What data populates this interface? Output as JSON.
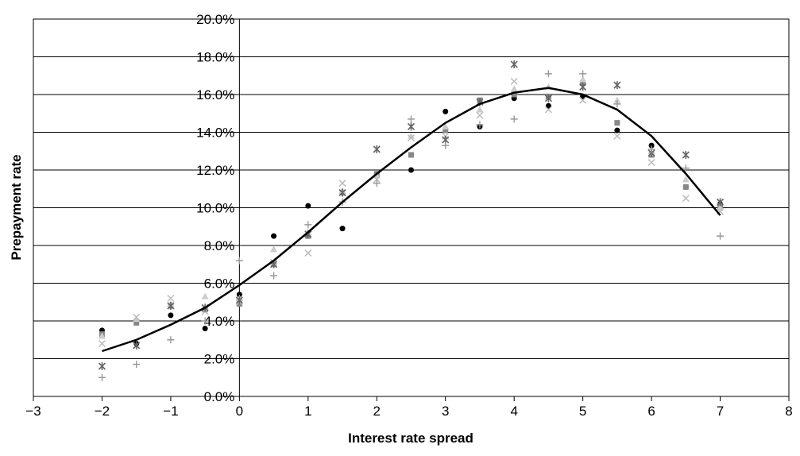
{
  "chart_data": {
    "type": "scatter",
    "x_label": "Interest rate spread",
    "y_label": "Prepayment rate",
    "x": [
      -2,
      -1.5,
      -1,
      -0.5,
      0,
      0.5,
      1,
      1.5,
      2,
      2.5,
      3,
      3.5,
      4,
      4.5,
      5,
      5.5,
      6,
      6.5,
      7
    ],
    "series": [
      {
        "marker": "circle",
        "color": "#000000",
        "values": [
          3.5,
          2.8,
          4.3,
          3.6,
          5.4,
          8.5,
          10.1,
          8.9,
          11.8,
          12.0,
          15.1,
          14.3,
          15.8,
          15.4,
          15.9,
          14.1,
          13.3,
          11.1,
          10.2
        ]
      },
      {
        "marker": "square",
        "color": "#888888",
        "values": [
          3.3,
          3.9,
          4.8,
          4.6,
          4.9,
          7.0,
          8.5,
          10.8,
          11.8,
          12.8,
          14.1,
          15.7,
          16.0,
          15.9,
          16.6,
          14.5,
          12.8,
          11.1,
          10.1
        ]
      },
      {
        "marker": "triangle",
        "color": "#cccccc",
        "values": [
          3.2,
          4.1,
          4.9,
          5.3,
          5.2,
          7.8,
          8.7,
          10.9,
          11.7,
          13.8,
          14.3,
          15.2,
          16.3,
          16.4,
          16.8,
          15.7,
          12.9,
          11.5,
          10.0
        ]
      },
      {
        "marker": "cross",
        "color": "#bbbbbb",
        "values": [
          2.8,
          4.2,
          5.2,
          4.5,
          5.0,
          7.1,
          7.6,
          11.3,
          11.5,
          13.7,
          13.8,
          14.9,
          16.7,
          15.2,
          15.7,
          13.8,
          12.4,
          10.5,
          9.8
        ]
      },
      {
        "marker": "asterisk",
        "color": "#666666",
        "values": [
          1.6,
          2.7,
          4.8,
          4.7,
          5.1,
          7.0,
          8.6,
          10.8,
          13.1,
          14.3,
          13.6,
          15.6,
          17.6,
          15.8,
          16.4,
          16.5,
          12.9,
          12.8,
          10.3
        ]
      },
      {
        "marker": "plus",
        "color": "#999999",
        "values": [
          1.0,
          1.7,
          3.0,
          4.0,
          7.2,
          6.4,
          9.1,
          10.3,
          11.3,
          14.7,
          13.3,
          14.4,
          14.7,
          17.1,
          17.1,
          15.5,
          13.1,
          12.1,
          8.5
        ]
      },
      {
        "marker": "line",
        "color": "#000000",
        "values": [
          2.4,
          3.0,
          3.8,
          4.7,
          5.9,
          7.2,
          8.7,
          10.3,
          11.8,
          13.2,
          14.5,
          15.5,
          16.1,
          16.35,
          16.0,
          15.2,
          13.8,
          11.8,
          9.6
        ]
      }
    ],
    "xlim": [
      -3,
      8
    ],
    "xticks": [
      {
        "value": -3,
        "label": "−3"
      },
      {
        "value": -2,
        "label": "−2"
      },
      {
        "value": -1,
        "label": "−1"
      },
      0,
      1,
      2,
      3,
      4,
      5,
      6,
      7,
      8
    ],
    "ylim": [
      0,
      20
    ],
    "yticks": [
      {
        "value": 0,
        "label": "0.0%"
      },
      {
        "value": 2,
        "label": "2.0%"
      },
      {
        "value": 4,
        "label": "4.0%"
      },
      {
        "value": 6,
        "label": "6.0%"
      },
      {
        "value": 8,
        "label": "8.0%"
      },
      {
        "value": 10,
        "label": "10.0%"
      },
      {
        "value": 12,
        "label": "12.0%"
      },
      {
        "value": 14,
        "label": "14.0%"
      },
      {
        "value": 16,
        "label": "16.0%"
      },
      {
        "value": 18,
        "label": "18.0%"
      },
      {
        "value": 20,
        "label": "20.0%"
      }
    ],
    "grid": true
  }
}
